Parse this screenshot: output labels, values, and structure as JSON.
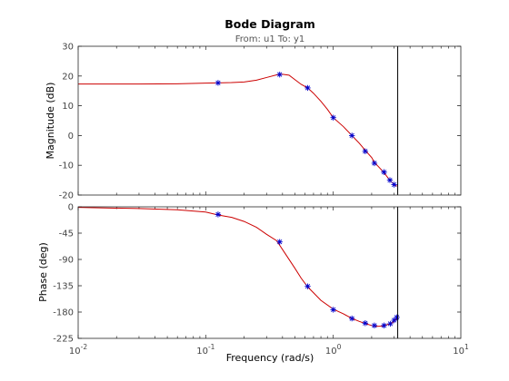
{
  "chart_data": {
    "type": "line",
    "title": "Bode Diagram",
    "subtitle": "From: u1  To: y1",
    "xlabel": "Frequency  (rad/s)",
    "xscale": "log",
    "xlim": [
      0.01,
      10
    ],
    "x_ticks": [
      {
        "value": 0.01,
        "base": "10",
        "exp": "-2"
      },
      {
        "value": 0.1,
        "base": "10",
        "exp": "-1"
      },
      {
        "value": 1,
        "base": "10",
        "exp": "0"
      },
      {
        "value": 10,
        "base": "10",
        "exp": "1"
      }
    ],
    "colors": {
      "curve": "#cc0000",
      "markers": "#0000cc",
      "cursor": "#000000"
    },
    "cursor_x": 3.2,
    "panels": [
      {
        "id": "magnitude",
        "ylabel": "Magnitude (dB)",
        "ylim": [
          -20,
          30
        ],
        "yticks": [
          30,
          20,
          10,
          0,
          -10,
          -20
        ],
        "curve": [
          [
            0.01,
            17.3
          ],
          [
            0.03,
            17.3
          ],
          [
            0.06,
            17.4
          ],
          [
            0.1,
            17.6
          ],
          [
            0.125,
            17.7
          ],
          [
            0.16,
            17.8
          ],
          [
            0.2,
            18.0
          ],
          [
            0.25,
            18.6
          ],
          [
            0.3,
            19.5
          ],
          [
            0.36,
            20.4
          ],
          [
            0.4,
            20.6
          ],
          [
            0.45,
            20.3
          ],
          [
            0.5,
            18.8
          ],
          [
            0.56,
            17.2
          ],
          [
            0.63,
            16.0
          ],
          [
            0.7,
            14.2
          ],
          [
            0.8,
            11.5
          ],
          [
            0.9,
            8.8
          ],
          [
            1.0,
            6.0
          ],
          [
            1.2,
            3.0
          ],
          [
            1.4,
            0.0
          ],
          [
            1.6,
            -2.6
          ],
          [
            1.8,
            -5.2
          ],
          [
            2.0,
            -7.4
          ],
          [
            2.1,
            -9.0
          ],
          [
            2.3,
            -10.8
          ],
          [
            2.5,
            -12.5
          ],
          [
            2.75,
            -14.8
          ],
          [
            3.0,
            -16.5
          ],
          [
            3.15,
            -17.0
          ]
        ],
        "markers": [
          [
            0.125,
            17.7
          ],
          [
            0.38,
            20.5
          ],
          [
            0.63,
            16.0
          ],
          [
            1.0,
            6.0
          ],
          [
            1.4,
            0.0
          ],
          [
            1.78,
            -5.3
          ],
          [
            2.1,
            -9.3
          ],
          [
            2.5,
            -12.3
          ],
          [
            2.78,
            -15.0
          ],
          [
            3.0,
            -16.5
          ]
        ]
      },
      {
        "id": "phase",
        "ylabel": "Phase (deg)",
        "ylim": [
          -225,
          0
        ],
        "yticks": [
          0,
          -45,
          -90,
          -135,
          -180,
          -225
        ],
        "curve": [
          [
            0.01,
            -1.0
          ],
          [
            0.03,
            -3.0
          ],
          [
            0.06,
            -5.0
          ],
          [
            0.1,
            -9.0
          ],
          [
            0.125,
            -14.0
          ],
          [
            0.16,
            -18.0
          ],
          [
            0.2,
            -25.0
          ],
          [
            0.25,
            -35.0
          ],
          [
            0.3,
            -47.0
          ],
          [
            0.36,
            -58.0
          ],
          [
            0.42,
            -80.0
          ],
          [
            0.5,
            -105.0
          ],
          [
            0.56,
            -122.0
          ],
          [
            0.63,
            -137.0
          ],
          [
            0.7,
            -147.0
          ],
          [
            0.8,
            -160.0
          ],
          [
            1.0,
            -175.0
          ],
          [
            1.2,
            -183.0
          ],
          [
            1.4,
            -191.0
          ],
          [
            1.6,
            -196.0
          ],
          [
            1.8,
            -200.0
          ],
          [
            2.0,
            -203.0
          ],
          [
            2.2,
            -204.5
          ],
          [
            2.4,
            -204.0
          ],
          [
            2.6,
            -202.0
          ],
          [
            2.8,
            -200.0
          ],
          [
            3.0,
            -196.0
          ],
          [
            3.15,
            -191.0
          ]
        ],
        "markers": [
          [
            0.125,
            -13.0
          ],
          [
            0.38,
            -60.0
          ],
          [
            0.63,
            -136.0
          ],
          [
            1.0,
            -176.0
          ],
          [
            1.4,
            -191.0
          ],
          [
            1.78,
            -199.0
          ],
          [
            2.1,
            -203.0
          ],
          [
            2.5,
            -203.0
          ],
          [
            2.8,
            -200.0
          ],
          [
            3.0,
            -194.0
          ],
          [
            3.15,
            -189.0
          ]
        ]
      }
    ]
  }
}
